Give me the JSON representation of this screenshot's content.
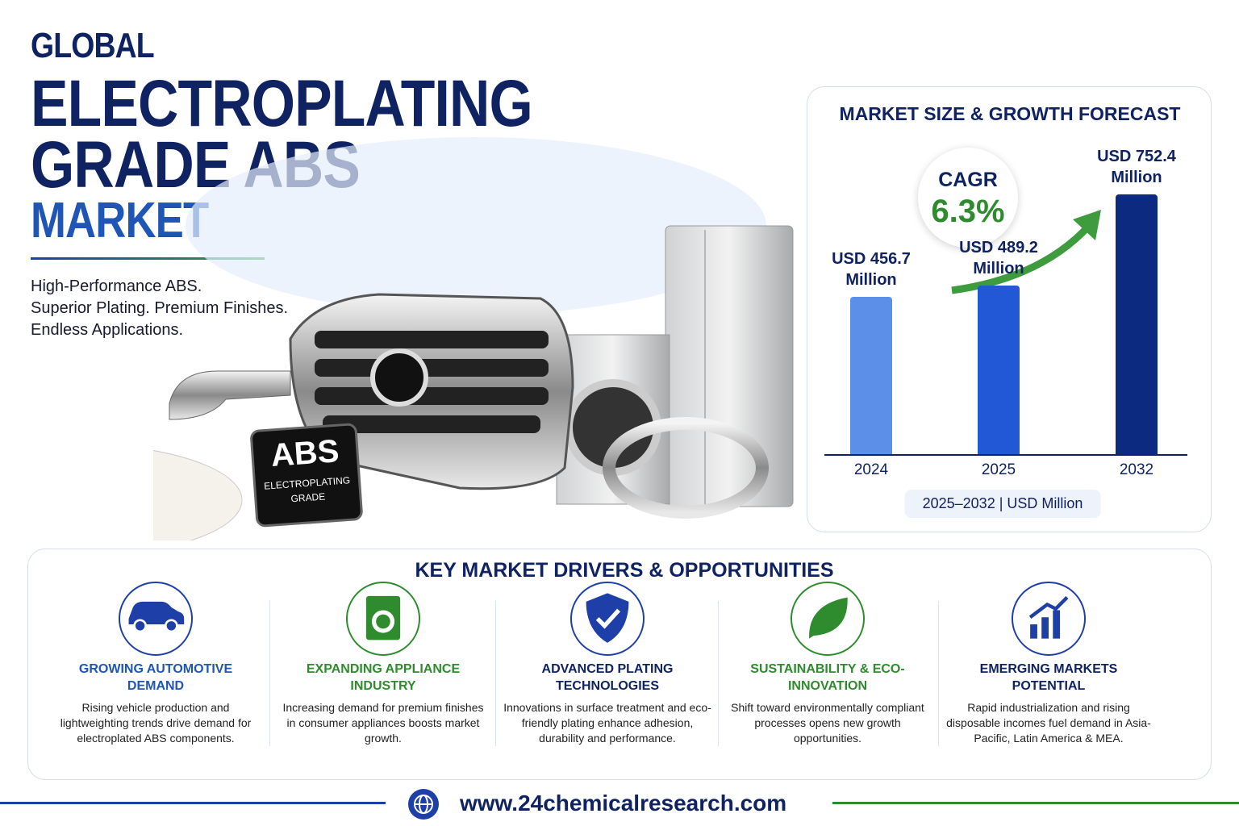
{
  "header": {
    "line1": "GLOBAL",
    "line2": "ELECTROPLATING",
    "line3": "GRADE ABS",
    "line4": "MARKET",
    "tagline": [
      "High-Performance ABS.",
      "Superior Plating. Premium Finishes.",
      "Endless Applications."
    ]
  },
  "illustration": {
    "badge_title": "ABS",
    "badge_subtitle": "ELECTROPLATING GRADE"
  },
  "chart_data": {
    "type": "bar",
    "title": "MARKET SIZE & GROWTH FORECAST",
    "categories": [
      "2024",
      "2025",
      "2032"
    ],
    "values": [
      456.7,
      489.2,
      752.4
    ],
    "value_labels": [
      "USD 456.7\nMillion",
      "USD 489.2\nMillion",
      "USD 752.4\nMillion"
    ],
    "colors": [
      "#5b8fe8",
      "#2257d6",
      "#0c2a80"
    ],
    "cagr_label": "CAGR",
    "cagr_value": "6.3%",
    "note": "2025–2032 | USD Million"
  },
  "drivers": {
    "title": "KEY MARKET DRIVERS & OPPORTUNITIES",
    "items": [
      {
        "title": "GROWING AUTOMOTIVE DEMAND",
        "text": "Rising vehicle production and lightweighting trends drive demand for electroplated ABS components."
      },
      {
        "title": "EXPANDING APPLIANCE INDUSTRY",
        "text": "Increasing demand for premium finishes in consumer appliances boosts market growth."
      },
      {
        "title": "ADVANCED PLATING TECHNOLOGIES",
        "text": "Innovations in surface treatment and eco-friendly plating enhance adhesion, durability and performance."
      },
      {
        "title": "SUSTAINABILITY & ECO-INNOVATION",
        "text": "Shift toward environmentally compliant processes opens new growth opportunities."
      },
      {
        "title": "EMERGING MARKETS POTENTIAL",
        "text": "Rapid industrialization and rising disposable incomes fuel demand in Asia-Pacific, Latin America & MEA."
      }
    ]
  },
  "footer": {
    "url": "www.24chemicalresearch.com"
  }
}
